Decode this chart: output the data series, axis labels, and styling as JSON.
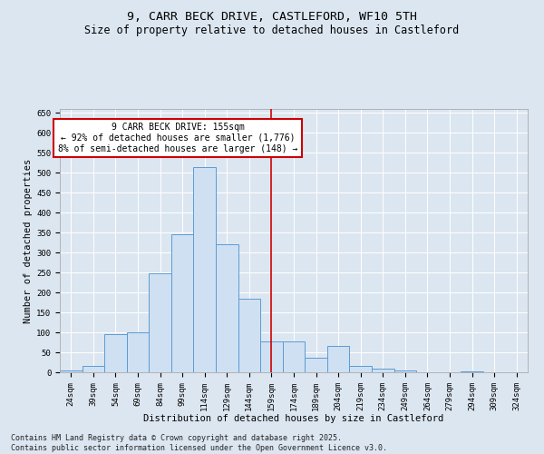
{
  "title_line1": "9, CARR BECK DRIVE, CASTLEFORD, WF10 5TH",
  "title_line2": "Size of property relative to detached houses in Castleford",
  "xlabel": "Distribution of detached houses by size in Castleford",
  "ylabel": "Number of detached properties",
  "categories": [
    "24sqm",
    "39sqm",
    "54sqm",
    "69sqm",
    "84sqm",
    "99sqm",
    "114sqm",
    "129sqm",
    "144sqm",
    "159sqm",
    "174sqm",
    "189sqm",
    "204sqm",
    "219sqm",
    "234sqm",
    "249sqm",
    "264sqm",
    "279sqm",
    "294sqm",
    "309sqm",
    "324sqm"
  ],
  "values": [
    5,
    17,
    95,
    100,
    248,
    347,
    515,
    320,
    185,
    78,
    78,
    37,
    65,
    17,
    10,
    4,
    1,
    0,
    3,
    0,
    1
  ],
  "bar_color": "#cfe0f2",
  "bar_edge_color": "#5b9bd5",
  "annotation_title": "9 CARR BECK DRIVE: 155sqm",
  "annotation_line1": "← 92% of detached houses are smaller (1,776)",
  "annotation_line2": "8% of semi-detached houses are larger (148) →",
  "annotation_box_facecolor": "#ffffff",
  "annotation_box_edgecolor": "#cc0000",
  "vline_color": "#cc0000",
  "vline_x_index": 9,
  "ylim": [
    0,
    660
  ],
  "yticks": [
    0,
    50,
    100,
    150,
    200,
    250,
    300,
    350,
    400,
    450,
    500,
    550,
    600,
    650
  ],
  "background_color": "#dce6f1",
  "footnote_line1": "Contains HM Land Registry data © Crown copyright and database right 2025.",
  "footnote_line2": "Contains public sector information licensed under the Open Government Licence v3.0.",
  "title_fontsize": 9.5,
  "subtitle_fontsize": 8.5,
  "axis_label_fontsize": 7.5,
  "tick_fontsize": 6.5,
  "annotation_fontsize": 7,
  "footnote_fontsize": 6
}
